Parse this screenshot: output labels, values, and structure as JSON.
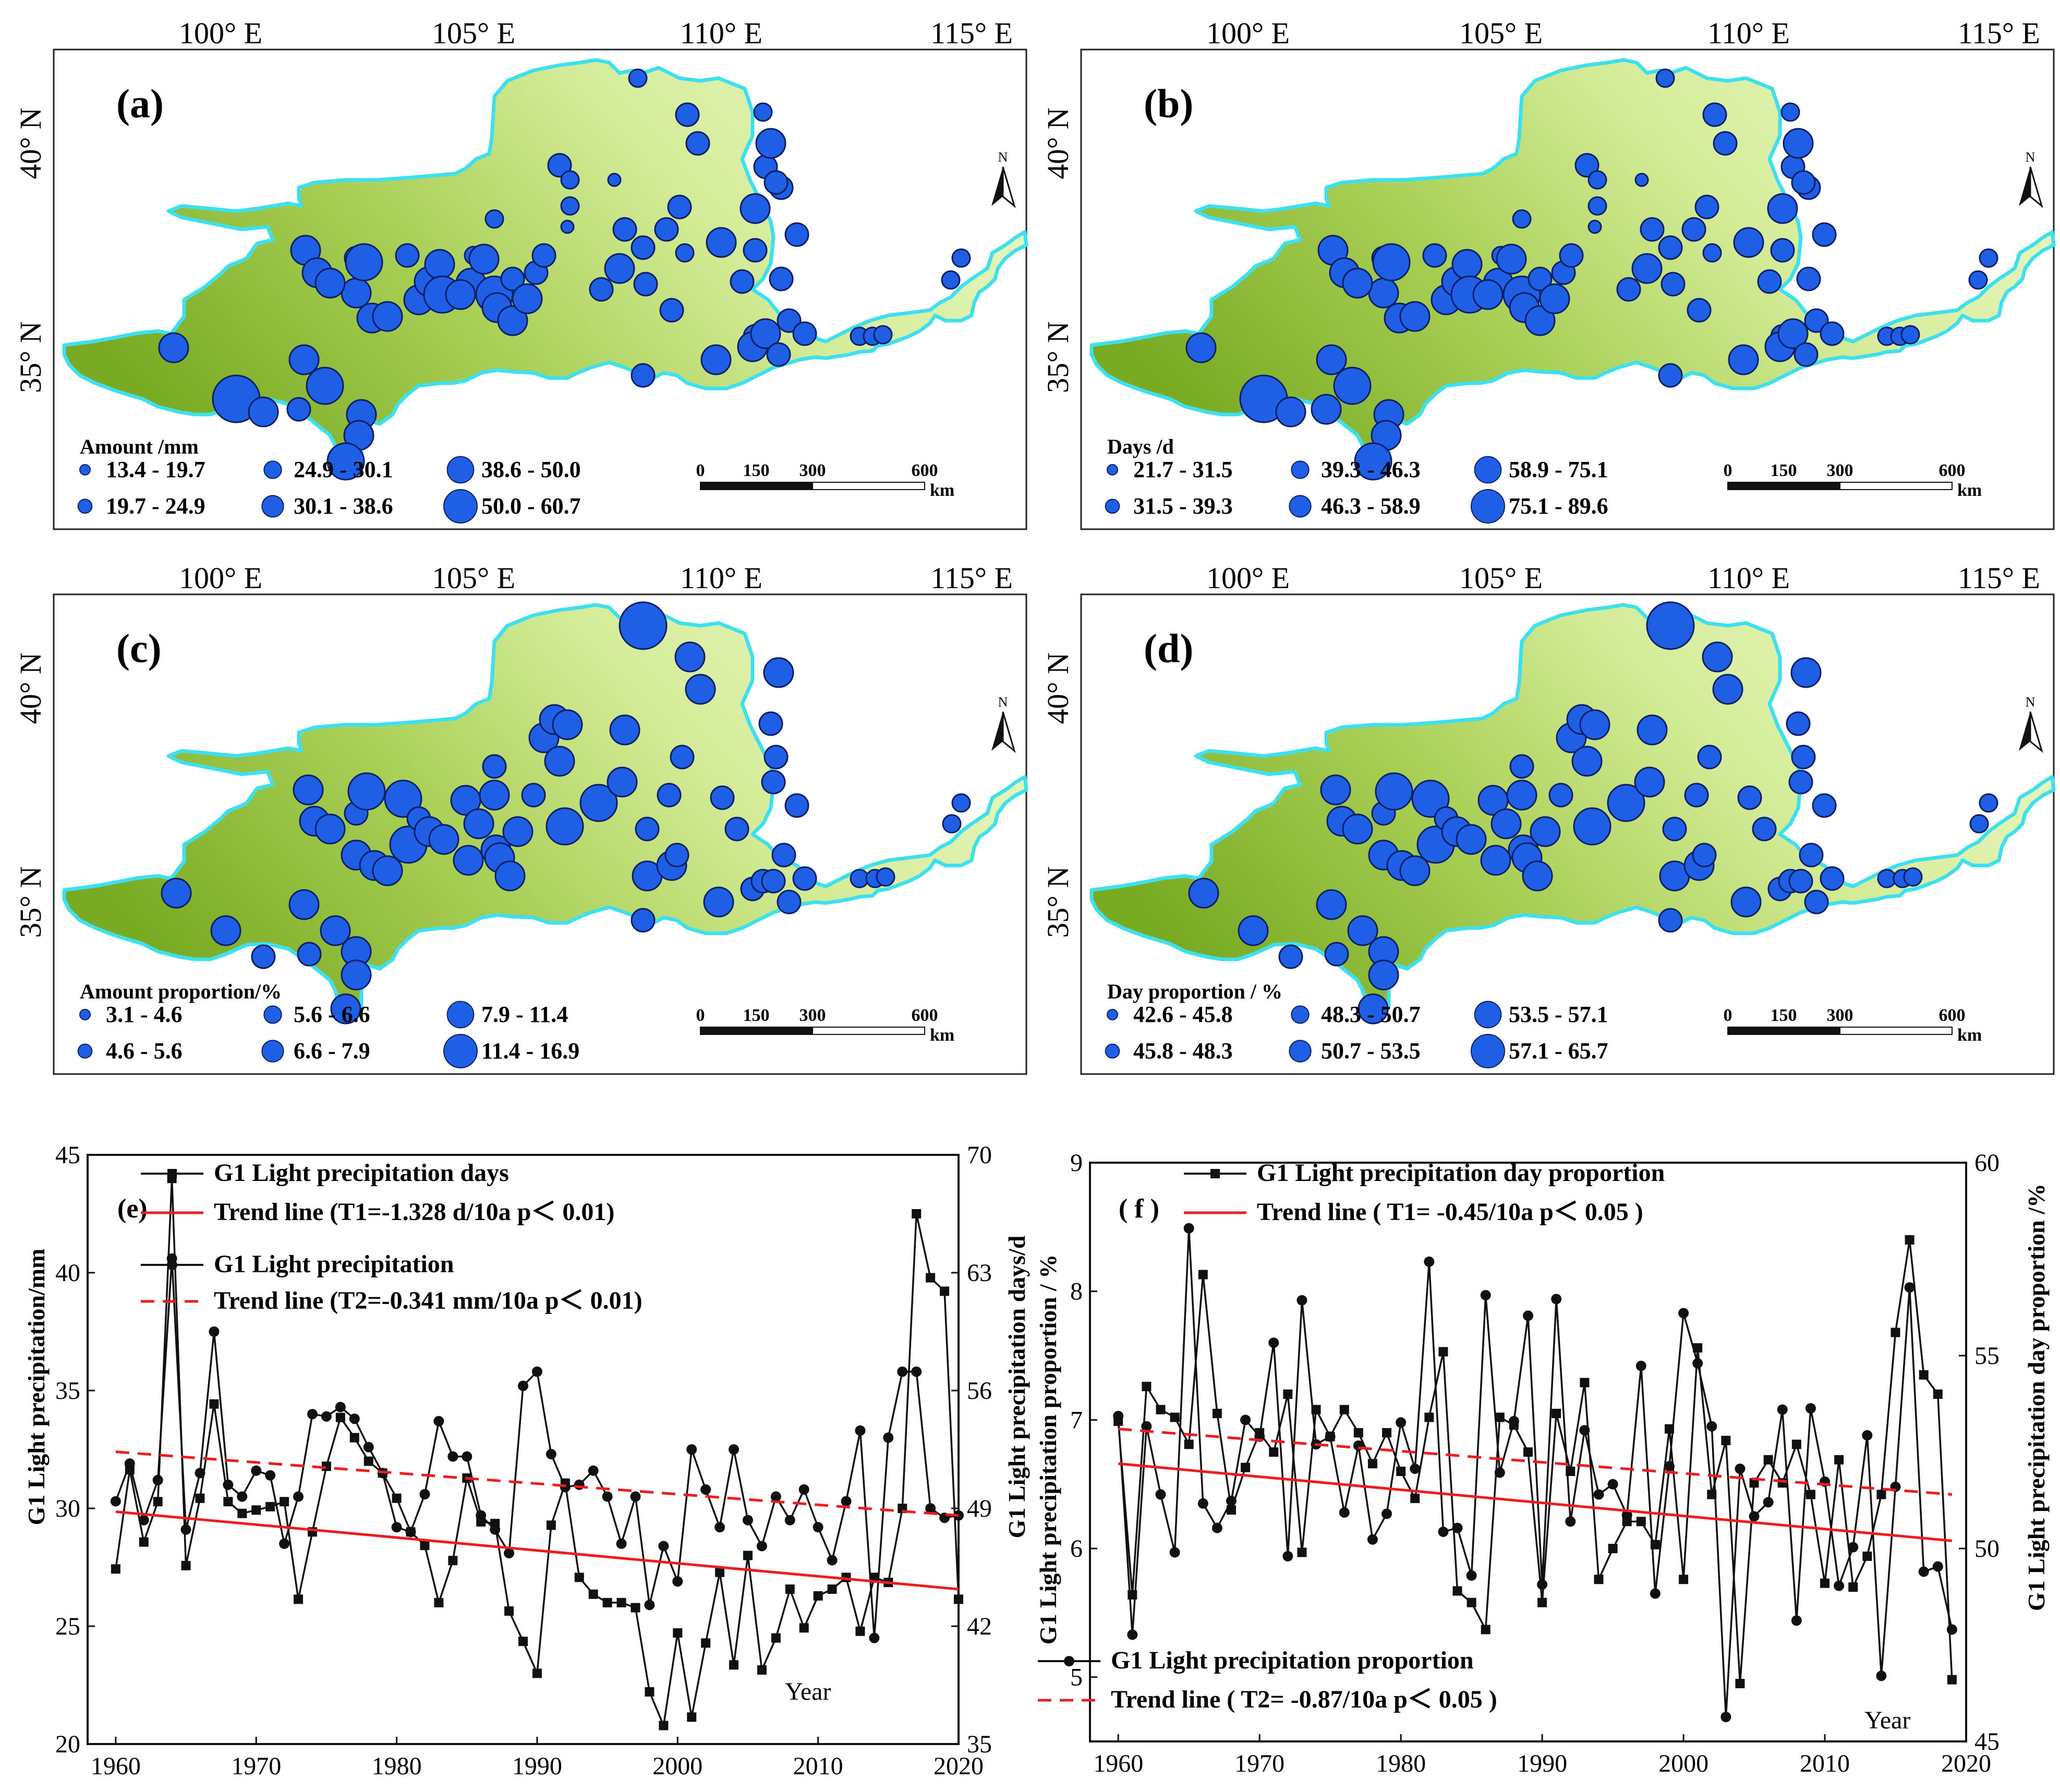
{
  "map_common": {
    "lon_labels": [
      "100° E",
      "105° E",
      "110° E",
      "115° E"
    ],
    "lat_labels": [
      "40° N",
      "35° N"
    ],
    "north_label": "N",
    "scale_labels": [
      "0",
      "150",
      "300",
      "600"
    ],
    "scale_unit": "km",
    "colors": {
      "fill_dark": "#7fb02a",
      "fill_light": "#e8f6c0",
      "border": "#3ee0f0",
      "dot": "#1f5fe6",
      "dot_edge": "#0a1f66"
    }
  },
  "maps": [
    {
      "label": "(a)",
      "legend_title": "Amount /mm",
      "legend_items": [
        "13.4 - 19.7",
        "19.7 - 24.9",
        "24.9 - 30.1",
        "30.1 - 38.6",
        "38.6 - 50.0",
        "50.0 - 60.7"
      ]
    },
    {
      "label": "(b)",
      "legend_title": "Days /d",
      "legend_items": [
        "21.7 - 31.5",
        "31.5 - 39.3",
        "39.3 - 46.3",
        "46.3 - 58.9",
        "58.9 - 75.1",
        "75.1 - 89.6"
      ]
    },
    {
      "label": "(c)",
      "legend_title": "Amount proportion/%",
      "legend_items": [
        "3.1 - 4.6",
        "4.6 - 5.6",
        "5.6 - 6.6",
        "6.6 - 7.9",
        "7.9 - 11.4",
        "11.4 - 16.9"
      ]
    },
    {
      "label": "(d)",
      "legend_title": "Day proportion / %",
      "legend_items": [
        "42.6 - 45.8",
        "45.8 - 48.3",
        "48.3 - 50.7",
        "50.7 - 53.5",
        "53.5 - 57.1",
        "57.1 - 65.7"
      ]
    }
  ],
  "chart_data": [
    {
      "type": "line",
      "panel_label": "(e)",
      "xlabel": "Year",
      "ylabel": "G1 Light precipitation/mm",
      "y2label": "G1 Light precipitation days/d",
      "xlim": [
        1958,
        2020
      ],
      "ylim": [
        20,
        45
      ],
      "y2lim": [
        35,
        70
      ],
      "xticks": [
        1960,
        1970,
        1980,
        1990,
        2000,
        2010,
        2020
      ],
      "yticks": [
        20,
        25,
        30,
        35,
        40,
        45
      ],
      "y2ticks": [
        35,
        42,
        49,
        56,
        63,
        70
      ],
      "x_start": 1960,
      "series": [
        {
          "name": "G1 Light precipitation days",
          "axis": "right",
          "marker": "square",
          "values": [
            45.4,
            51.3,
            47.0,
            49.4,
            68.6,
            45.6,
            49.6,
            55.2,
            49.4,
            48.7,
            48.9,
            49.1,
            49.4,
            43.6,
            47.6,
            51.5,
            54.4,
            53.2,
            51.8,
            51.1,
            49.6,
            47.6,
            46.8,
            43.4,
            45.9,
            50.8,
            48.2,
            48.1,
            42.9,
            41.1,
            39.2,
            48.0,
            50.5,
            44.9,
            43.9,
            43.4,
            43.4,
            43.1,
            38.1,
            36.1,
            41.6,
            36.6,
            41.0,
            45.2,
            39.7,
            46.2,
            39.4,
            41.3,
            44.2,
            41.9,
            43.8,
            44.2,
            44.9,
            41.7,
            44.9,
            44.6,
            49.0,
            66.5,
            62.7,
            61.9,
            43.6
          ]
        },
        {
          "name": "G1 Light precipitation",
          "axis": "left",
          "marker": "circle",
          "values": [
            30.3,
            31.9,
            29.5,
            31.2,
            40.6,
            29.1,
            31.5,
            37.5,
            31.0,
            30.5,
            31.6,
            31.4,
            28.5,
            30.5,
            34.0,
            33.9,
            34.3,
            33.8,
            32.6,
            31.5,
            29.2,
            29.0,
            30.6,
            33.7,
            32.2,
            32.2,
            29.7,
            29.1,
            28.1,
            35.2,
            35.8,
            32.3,
            30.9,
            31.0,
            31.6,
            30.5,
            28.5,
            30.5,
            25.9,
            28.4,
            26.9,
            32.5,
            30.8,
            29.2,
            32.5,
            29.5,
            28.4,
            30.5,
            29.5,
            30.8,
            29.2,
            27.8,
            30.3,
            33.3,
            24.5,
            33.0,
            35.8,
            35.8,
            30.0,
            29.6,
            29.7
          ]
        },
        {
          "name": "Trend line  (T1=-1.328 d/10a  p＜ 0.01)",
          "axis": "right",
          "style": "solid",
          "color": "#ee1c1c",
          "values": [
            48.8,
            44.2
          ]
        },
        {
          "name": "Trend line  (T2=-0.341 mm/10a  p＜ 0.01)",
          "axis": "left",
          "style": "dashed",
          "color": "#ee1c1c",
          "values": [
            32.4,
            29.7
          ]
        }
      ],
      "legend": [
        {
          "label": "G1 Light precipitation days"
        },
        {
          "label": "Trend line  (T1=-1.328 d/10a  p＜ 0.01)"
        },
        {
          "label": "G1 Light precipitation"
        },
        {
          "label": "Trend line  (T2=-0.341 mm/10a  p＜ 0.01)"
        }
      ]
    },
    {
      "type": "line",
      "panel_label": "( f )",
      "xlabel": "Year",
      "ylabel": "G1 Light precipitation proportion / %",
      "y2label": "G1 Light precipitation day proportion /%",
      "xlim": [
        1958,
        2020
      ],
      "ylim": [
        4.5,
        9
      ],
      "y2lim": [
        45,
        60
      ],
      "xticks": [
        1960,
        1970,
        1980,
        1990,
        2000,
        2010,
        2020
      ],
      "yticks": [
        5,
        6,
        7,
        8,
        9
      ],
      "y2ticks": [
        45,
        50,
        55,
        60
      ],
      "x_start": 1960,
      "series": [
        {
          "name": "G1 Light precipitation day proportion",
          "axis": "right",
          "marker": "square",
          "values": [
            53.3,
            48.8,
            54.2,
            53.6,
            53.4,
            52.7,
            57.1,
            53.5,
            51.0,
            52.1,
            53.0,
            52.5,
            54.0,
            49.9,
            53.6,
            52.9,
            53.6,
            53.0,
            52.2,
            53.0,
            52.0,
            51.3,
            53.4,
            55.1,
            48.9,
            48.6,
            47.9,
            53.4,
            53.2,
            52.5,
            48.6,
            53.5,
            52.0,
            54.3,
            49.2,
            50.0,
            50.7,
            50.7,
            50.1,
            53.1,
            49.2,
            55.2,
            51.4,
            52.8,
            46.5,
            51.7,
            52.3,
            51.7,
            52.7,
            51.4,
            49.1,
            52.3,
            49.0,
            49.8,
            51.4,
            55.6,
            58.0,
            54.5,
            54.0,
            46.6
          ]
        },
        {
          "name": "G1 Light precipitation proportion",
          "axis": "left",
          "marker": "circle",
          "values": [
            7.03,
            5.33,
            6.95,
            6.42,
            5.97,
            8.49,
            6.35,
            6.16,
            6.37,
            7.0,
            6.87,
            7.6,
            5.94,
            7.93,
            6.81,
            6.87,
            6.28,
            6.8,
            6.07,
            6.27,
            6.98,
            6.62,
            8.23,
            6.13,
            6.16,
            5.79,
            7.97,
            6.59,
            6.99,
            7.81,
            5.72,
            7.94,
            6.21,
            6.92,
            6.42,
            6.5,
            6.26,
            7.42,
            5.65,
            6.64,
            7.83,
            7.44,
            6.95,
            4.69,
            6.62,
            6.25,
            6.36,
            7.08,
            5.44,
            7.09,
            6.52,
            5.71,
            6.01,
            6.88,
            5.01,
            6.48,
            8.03,
            5.82,
            5.86,
            5.37
          ]
        },
        {
          "name": "Trend line ( T1= -0.45/10a  p＜ 0.05 )",
          "axis": "right",
          "style": "solid",
          "color": "#ee1c1c",
          "values": [
            52.2,
            50.2
          ]
        },
        {
          "name": "Trend line ( T2= -0.87/10a  p＜ 0.05 )",
          "axis": "left",
          "style": "dashed",
          "color": "#ee1c1c",
          "values": [
            6.93,
            6.42
          ]
        }
      ],
      "legend": [
        {
          "label": "G1 Light precipitation day proportion"
        },
        {
          "label": "Trend line ( T1= -0.45/10a  p＜ 0.05 )"
        },
        {
          "label": "G1 Light precipitation proportion"
        },
        {
          "label": "Trend line ( T2= -0.87/10a  p＜ 0.05 )"
        }
      ]
    }
  ]
}
